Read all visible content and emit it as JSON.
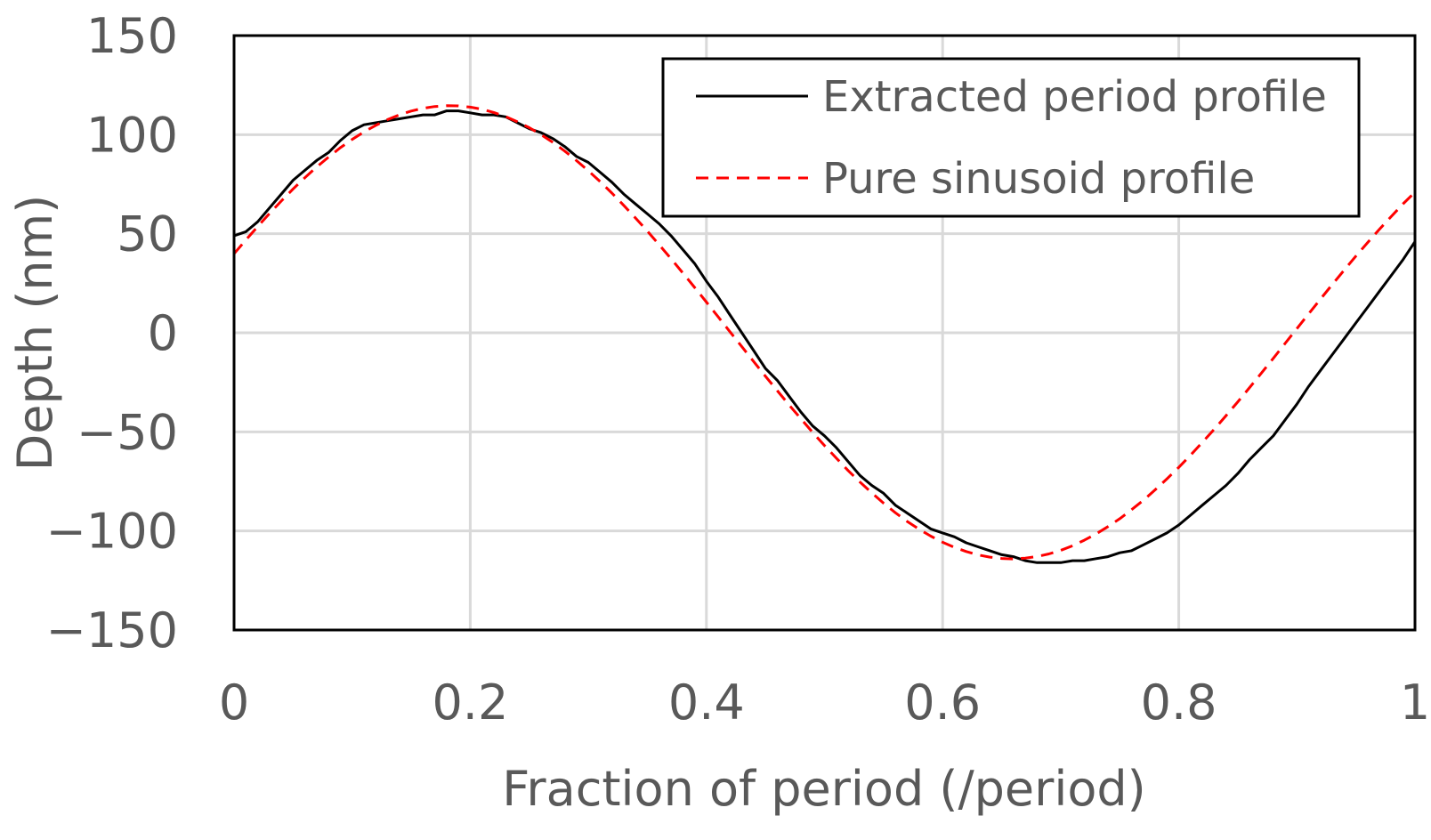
{
  "chart_data": {
    "type": "line",
    "title": "",
    "xlabel": "Fraction of period (/period)",
    "ylabel": "Depth (nm)",
    "xlim": [
      0,
      1
    ],
    "ylim": [
      -150,
      150
    ],
    "xticks": [
      0,
      0.2,
      0.4,
      0.6,
      0.8,
      1
    ],
    "xtick_labels": [
      "0",
      "0.2",
      "0.4",
      "0.6",
      "0.8",
      "1"
    ],
    "yticks": [
      150,
      100,
      50,
      0,
      -50,
      -100,
      -150
    ],
    "ytick_labels": [
      "150",
      "100",
      "50",
      "0",
      "−50",
      "−100",
      "−150"
    ],
    "grid": true,
    "legend_position": "top-right",
    "series": [
      {
        "name": "Extracted period profile",
        "color": "#000000",
        "style": "solid",
        "x": [
          0,
          0.01,
          0.02,
          0.03,
          0.04,
          0.05,
          0.06,
          0.07,
          0.08,
          0.09,
          0.1,
          0.11,
          0.12,
          0.13,
          0.14,
          0.15,
          0.16,
          0.17,
          0.18,
          0.19,
          0.2,
          0.21,
          0.22,
          0.23,
          0.24,
          0.25,
          0.26,
          0.27,
          0.28,
          0.29,
          0.3,
          0.31,
          0.32,
          0.33,
          0.34,
          0.35,
          0.36,
          0.37,
          0.38,
          0.39,
          0.4,
          0.41,
          0.42,
          0.43,
          0.44,
          0.45,
          0.46,
          0.47,
          0.48,
          0.49,
          0.5,
          0.51,
          0.52,
          0.53,
          0.54,
          0.55,
          0.56,
          0.57,
          0.58,
          0.59,
          0.6,
          0.61,
          0.62,
          0.63,
          0.64,
          0.65,
          0.66,
          0.67,
          0.68,
          0.69,
          0.7,
          0.71,
          0.72,
          0.73,
          0.74,
          0.75,
          0.76,
          0.77,
          0.78,
          0.79,
          0.8,
          0.81,
          0.82,
          0.83,
          0.84,
          0.85,
          0.86,
          0.87,
          0.88,
          0.89,
          0.9,
          0.91,
          0.92,
          0.93,
          0.94,
          0.95,
          0.96,
          0.97,
          0.98,
          0.99,
          1
        ],
        "values": [
          49,
          51,
          56,
          63,
          70,
          77,
          82,
          87,
          91,
          97,
          102,
          105,
          106,
          107,
          108,
          109,
          110,
          110,
          112,
          112,
          111,
          110,
          110,
          109,
          106,
          103,
          101,
          98,
          94,
          89,
          86,
          81,
          76,
          70,
          65,
          60,
          55,
          49,
          42,
          35,
          26,
          18,
          9,
          0,
          -9,
          -18,
          -24,
          -32,
          -40,
          -47,
          -52,
          -58,
          -65,
          -72,
          -77,
          -81,
          -87,
          -91,
          -95,
          -99,
          -101,
          -103,
          -106,
          -108,
          -110,
          -112,
          -113,
          -115,
          -116,
          -116,
          -116,
          -115,
          -115,
          -114,
          -113,
          -111,
          -110,
          -107,
          -104,
          -101,
          -97,
          -92,
          -87,
          -82,
          -77,
          -71,
          -64,
          -58,
          -52,
          -44,
          -36,
          -27,
          -19,
          -11,
          -3,
          5,
          13,
          21,
          29,
          37,
          46
        ]
      },
      {
        "name": "Pure sinusoid profile",
        "color": "#ff0000",
        "style": "dashed",
        "x": [
          0,
          0.01,
          0.02,
          0.03,
          0.04,
          0.05,
          0.06,
          0.07,
          0.08,
          0.09,
          0.1,
          0.11,
          0.12,
          0.13,
          0.14,
          0.15,
          0.16,
          0.17,
          0.18,
          0.19,
          0.2,
          0.21,
          0.22,
          0.23,
          0.24,
          0.25,
          0.26,
          0.27,
          0.28,
          0.29,
          0.3,
          0.31,
          0.32,
          0.33,
          0.34,
          0.35,
          0.36,
          0.37,
          0.38,
          0.39,
          0.4,
          0.41,
          0.42,
          0.43,
          0.44,
          0.45,
          0.46,
          0.47,
          0.48,
          0.49,
          0.5,
          0.51,
          0.52,
          0.53,
          0.54,
          0.55,
          0.56,
          0.57,
          0.58,
          0.59,
          0.6,
          0.61,
          0.62,
          0.63,
          0.64,
          0.65,
          0.66,
          0.67,
          0.68,
          0.69,
          0.7,
          0.71,
          0.72,
          0.73,
          0.74,
          0.75,
          0.76,
          0.77,
          0.78,
          0.79,
          0.8,
          0.81,
          0.82,
          0.83,
          0.84,
          0.85,
          0.86,
          0.87,
          0.88,
          0.89,
          0.9,
          0.91,
          0.92,
          0.93,
          0.94,
          0.95,
          0.96,
          0.97,
          0.98,
          0.99,
          1
        ],
        "values": [
          39.9,
          46.9,
          53.6,
          60.2,
          66.5,
          72.6,
          78.3,
          83.7,
          88.7,
          93.4,
          97.6,
          101.4,
          104.7,
          107.6,
          110.0,
          111.9,
          113.3,
          114.2,
          114.6,
          114.5,
          113.9,
          112.8,
          111.2,
          109.1,
          106.5,
          103.5,
          100.0,
          96.1,
          91.7,
          86.9,
          81.8,
          76.3,
          70.5,
          64.3,
          57.9,
          51.3,
          44.4,
          37.4,
          30.2,
          22.9,
          15.5,
          8.0,
          0.5,
          -7.0,
          -14.5,
          -21.9,
          -29.2,
          -36.4,
          -43.4,
          -50.3,
          -56.9,
          -63.3,
          -69.5,
          -75.3,
          -80.8,
          -86.0,
          -90.8,
          -95.2,
          -99.1,
          -102.6,
          -105.7,
          -108.3,
          -110.4,
          -112.1,
          -113.2,
          -113.9,
          -114.1,
          -113.7,
          -112.9,
          -111.6,
          -109.8,
          -107.5,
          -104.7,
          -101.5,
          -97.8,
          -93.8,
          -89.3,
          -84.5,
          -79.2,
          -73.7,
          -67.9,
          -61.7,
          -55.3,
          -48.7,
          -41.8,
          -34.8,
          -27.6,
          -20.3,
          -12.9,
          -5.4,
          2.1,
          9.6,
          17.0,
          24.4,
          31.6,
          38.7,
          45.6,
          52.3,
          58.8,
          65.1,
          71.0
        ]
      }
    ]
  }
}
